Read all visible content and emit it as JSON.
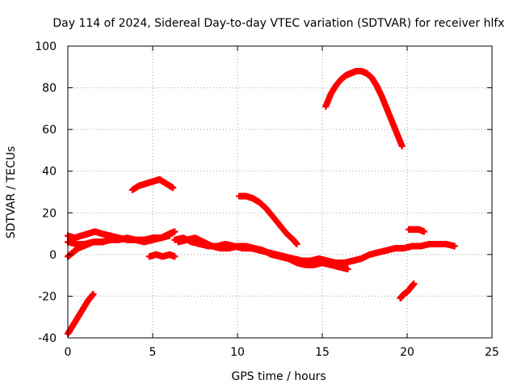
{
  "chart_data": {
    "type": "scatter",
    "title": "Day 114 of 2024, Sidereal Day-to-day VTEC variation (SDTVAR) for receiver hlfx",
    "xlabel": "GPS time / hours",
    "ylabel": "SDTVAR / TECUs",
    "xlim": [
      0,
      25
    ],
    "ylim": [
      -40,
      100
    ],
    "xticks": [
      0,
      5,
      10,
      15,
      20,
      25
    ],
    "yticks": [
      -40,
      -20,
      0,
      20,
      40,
      60,
      80,
      100
    ],
    "grid": true,
    "marker": "plus",
    "color": "#ff0000",
    "series": [
      {
        "name": "arc-rise-early",
        "x": [
          0.0,
          0.3,
          0.6,
          0.9,
          1.2,
          1.5
        ],
        "y": [
          -38,
          -34,
          -30,
          -26,
          -22,
          -19
        ]
      },
      {
        "name": "arc-dip-early",
        "x": [
          0.0,
          0.3,
          0.6,
          0.9,
          1.2,
          1.5,
          1.8,
          2.1
        ],
        "y": [
          -1,
          1,
          3,
          4,
          5,
          6,
          6,
          6
        ]
      },
      {
        "name": "arc-band-early",
        "x": [
          0.0,
          0.4,
          0.8,
          1.2,
          1.6,
          2.0,
          2.5,
          3.0,
          3.5,
          4.0,
          4.5,
          5.0,
          5.5,
          6.0,
          6.3
        ],
        "y": [
          9,
          8,
          9,
          10,
          11,
          10,
          9,
          8,
          7,
          7,
          6,
          7,
          8,
          10,
          11
        ]
      },
      {
        "name": "arc-band-lower",
        "x": [
          0.0,
          0.5,
          1.0,
          1.5,
          2.0,
          2.5,
          3.0,
          3.5,
          4.0,
          4.5,
          5.0,
          5.5,
          6.0
        ],
        "y": [
          6,
          5,
          5,
          6,
          6,
          7,
          7,
          8,
          7,
          7,
          8,
          8,
          9
        ]
      },
      {
        "name": "arc-hump-mid",
        "x": [
          3.8,
          4.2,
          4.6,
          5.0,
          5.4,
          5.8,
          6.2
        ],
        "y": [
          31,
          33,
          34,
          35,
          36,
          34,
          32
        ]
      },
      {
        "name": "arc-small-mid",
        "x": [
          4.8,
          5.2,
          5.6,
          6.0,
          6.3
        ],
        "y": [
          -1,
          0,
          -1,
          0,
          -1
        ]
      },
      {
        "name": "arc-band-main",
        "x": [
          6.3,
          6.8,
          7.3,
          7.8,
          8.3,
          8.8,
          9.3,
          9.8,
          10.3,
          10.8,
          11.3,
          11.8,
          12.3,
          12.8,
          13.3,
          13.8,
          14.3,
          14.8,
          15.3,
          15.8,
          16.3,
          16.8,
          17.3,
          17.8,
          18.3,
          18.8,
          19.3,
          19.8,
          20.3,
          20.8,
          21.3,
          21.8,
          22.3,
          22.8
        ],
        "y": [
          7,
          8,
          6,
          5,
          4,
          4,
          5,
          4,
          3,
          3,
          2,
          1,
          0,
          -1,
          -2,
          -3,
          -3,
          -2,
          -3,
          -4,
          -4,
          -3,
          -2,
          0,
          1,
          2,
          3,
          3,
          4,
          4,
          5,
          5,
          5,
          4
        ]
      },
      {
        "name": "arc-band-main-lower",
        "x": [
          6.5,
          7.0,
          7.5,
          8.0,
          8.5,
          9.0,
          9.5,
          10.0,
          10.5,
          11.0,
          11.5,
          12.0,
          12.5,
          13.0,
          13.5,
          14.0,
          14.5,
          15.0,
          15.5,
          16.0,
          16.5
        ],
        "y": [
          6,
          7,
          8,
          6,
          4,
          3,
          3,
          4,
          4,
          3,
          2,
          0,
          -1,
          -2,
          -4,
          -5,
          -5,
          -4,
          -5,
          -6,
          -7
        ]
      },
      {
        "name": "arc-decline-10",
        "x": [
          10.1,
          10.5,
          10.9,
          11.3,
          11.7,
          12.1,
          12.5,
          12.9,
          13.3,
          13.5
        ],
        "y": [
          28,
          28,
          27,
          25,
          22,
          18,
          14,
          10,
          7,
          5
        ]
      },
      {
        "name": "arc-peak-high",
        "x": [
          15.2,
          15.5,
          15.8,
          16.1,
          16.4,
          16.7,
          17.0,
          17.3,
          17.6,
          17.9,
          18.2,
          18.5,
          18.8,
          19.1,
          19.4,
          19.7
        ],
        "y": [
          71,
          77,
          81,
          84,
          86,
          87,
          88,
          88,
          87,
          85,
          81,
          76,
          70,
          64,
          58,
          52
        ]
      },
      {
        "name": "arc-small-20",
        "x": [
          20.1,
          20.4,
          20.7,
          21.0
        ],
        "y": [
          12,
          12,
          12,
          11
        ]
      },
      {
        "name": "arc-rise-20",
        "x": [
          19.6,
          19.8,
          20.0,
          20.2,
          20.4
        ],
        "y": [
          -21,
          -19,
          -18,
          -16,
          -14
        ]
      }
    ]
  }
}
